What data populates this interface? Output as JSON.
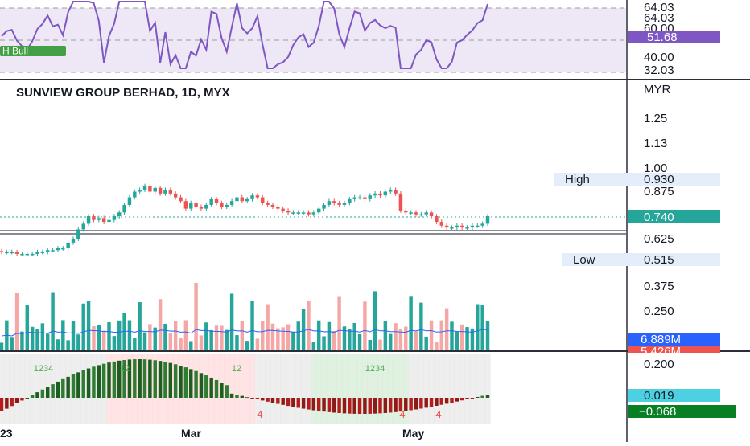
{
  "title": "SUNVIEW GROUP BERHAD, 1D, MYX",
  "currency": "MYR",
  "time_labels": [
    "23",
    "Mar",
    "May"
  ],
  "rsi": {
    "badge": "H Bull",
    "tick_labels": [
      "64.03",
      "64.03",
      "60.00",
      "40.00",
      "32.03"
    ],
    "current_label": "51.68",
    "color": "#7e57c2"
  },
  "price": {
    "tick_labels": [
      "1.25",
      "1.13",
      "1.00",
      "0.875",
      "0.625",
      "0.375",
      "0.250"
    ],
    "high_label": "High",
    "high_value": "0.930",
    "low_label": "Low",
    "low_value": "0.515",
    "last_value": "0.740",
    "up_color": "#26a69a",
    "down_color": "#ef5350"
  },
  "volume": {
    "label_1": "6.889M",
    "label_1_color": "#2962ff",
    "label_2": "5.426M",
    "label_2_color": "#ef5350"
  },
  "oscillator": {
    "tick_label": "0.200",
    "value_1": "0.019",
    "value_1_color": "#4dd0e1",
    "value_2": "−0.068",
    "value_2_color": "#087f23",
    "markers": [
      "1234",
      "12",
      "12",
      "1234",
      "4",
      "4",
      "4"
    ]
  },
  "chart_data": {
    "type": "candlestick",
    "title": "SUNVIEW GROUP BERHAD, 1D, MYX",
    "x_labels": [
      "23",
      "Mar",
      "May"
    ],
    "y_unit": "MYR",
    "ylim": [
      0.2,
      1.3
    ],
    "series": [
      {
        "name": "Price",
        "close_values": [
          0.55,
          0.55,
          0.55,
          0.54,
          0.54,
          0.54,
          0.54,
          0.55,
          0.55,
          0.56,
          0.56,
          0.57,
          0.57,
          0.6,
          0.62,
          0.67,
          0.7,
          0.74,
          0.72,
          0.73,
          0.71,
          0.72,
          0.74,
          0.76,
          0.8,
          0.84,
          0.87,
          0.88,
          0.9,
          0.87,
          0.89,
          0.86,
          0.88,
          0.86,
          0.84,
          0.82,
          0.78,
          0.81,
          0.79,
          0.78,
          0.8,
          0.83,
          0.81,
          0.79,
          0.8,
          0.82,
          0.84,
          0.82,
          0.83,
          0.85,
          0.84,
          0.81,
          0.8,
          0.79,
          0.78,
          0.77,
          0.76,
          0.76,
          0.76,
          0.76,
          0.75,
          0.76,
          0.78,
          0.8,
          0.82,
          0.81,
          0.8,
          0.81,
          0.83,
          0.84,
          0.84,
          0.83,
          0.85,
          0.86,
          0.85,
          0.87,
          0.88,
          0.86,
          0.77,
          0.76,
          0.76,
          0.75,
          0.75,
          0.76,
          0.74,
          0.71,
          0.69,
          0.68,
          0.68,
          0.69,
          0.68,
          0.68,
          0.69,
          0.69,
          0.7,
          0.74
        ]
      }
    ],
    "high": 0.93,
    "low": 0.515,
    "last": 0.74,
    "volume_labels": [
      "6.889M",
      "5.426M"
    ],
    "rsi_last": 51.68,
    "oscillator_values": [
      0.019,
      -0.068
    ]
  }
}
